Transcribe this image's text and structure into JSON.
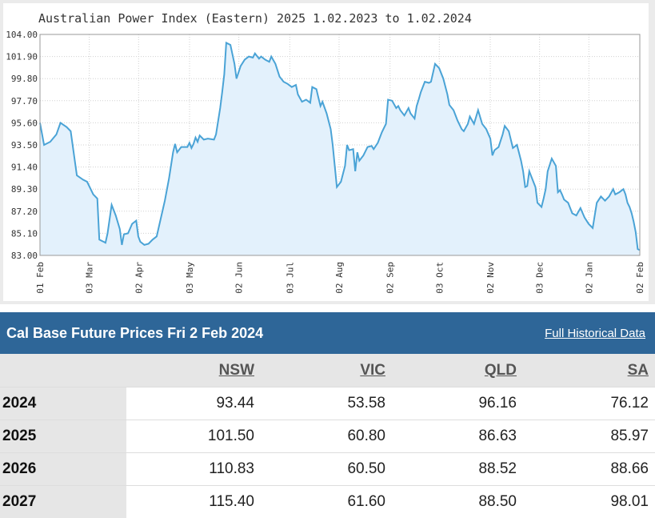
{
  "chart": {
    "title": "Australian Power Index (Eastern) 2025 1.02.2023 to 1.02.2024"
  },
  "chart_data": {
    "type": "area",
    "title": "Australian Power Index (Eastern) 2025 1.02.2023 to 1.02.2024",
    "ylim": [
      83.0,
      104.0
    ],
    "yticks": [
      "104.00",
      "101.90",
      "99.80",
      "97.70",
      "95.60",
      "93.50",
      "91.40",
      "89.30",
      "87.20",
      "85.10",
      "83.00"
    ],
    "xticks": [
      "01 Feb",
      "03 Mar",
      "02 Apr",
      "03 May",
      "02 Jun",
      "03 Jul",
      "02 Aug",
      "02 Sep",
      "03 Oct",
      "02 Nov",
      "03 Dec",
      "02 Jan",
      "02 Feb"
    ],
    "grid": true,
    "series": [
      {
        "color": "#4aa3d6",
        "points": [
          [
            0,
            95.6
          ],
          [
            2,
            93.5
          ],
          [
            5,
            93.8
          ],
          [
            8,
            94.5
          ],
          [
            10,
            95.6
          ],
          [
            13,
            95.2
          ],
          [
            15,
            94.8
          ],
          [
            18,
            90.6
          ],
          [
            21,
            90.2
          ],
          [
            23,
            90.0
          ],
          [
            26,
            88.8
          ],
          [
            28,
            88.4
          ],
          [
            29,
            84.5
          ],
          [
            31,
            84.3
          ],
          [
            32,
            84.2
          ],
          [
            33,
            85.1
          ],
          [
            35,
            87.8
          ],
          [
            37,
            86.8
          ],
          [
            39,
            85.5
          ],
          [
            40,
            84.0
          ],
          [
            41,
            85.0
          ],
          [
            43,
            85.1
          ],
          [
            45,
            86.0
          ],
          [
            47,
            86.3
          ],
          [
            48,
            84.8
          ],
          [
            49,
            84.3
          ],
          [
            51,
            84.0
          ],
          [
            53,
            84.1
          ],
          [
            55,
            84.5
          ],
          [
            57,
            84.8
          ],
          [
            59,
            86.5
          ],
          [
            61,
            88.2
          ],
          [
            63,
            90.3
          ],
          [
            65,
            92.8
          ],
          [
            66,
            93.6
          ],
          [
            67,
            92.8
          ],
          [
            69,
            93.3
          ],
          [
            72,
            93.3
          ],
          [
            73,
            93.7
          ],
          [
            74,
            93.2
          ],
          [
            75,
            93.6
          ],
          [
            76,
            94.2
          ],
          [
            77,
            93.8
          ],
          [
            78,
            94.4
          ],
          [
            80,
            94.0
          ],
          [
            82,
            94.1
          ],
          [
            85,
            94.0
          ],
          [
            86,
            94.5
          ],
          [
            88,
            97.0
          ],
          [
            89,
            98.5
          ],
          [
            90,
            100.2
          ],
          [
            91,
            103.2
          ],
          [
            93,
            103.0
          ],
          [
            95,
            101.2
          ],
          [
            96,
            99.8
          ],
          [
            98,
            101.0
          ],
          [
            100,
            101.6
          ],
          [
            102,
            101.9
          ],
          [
            104,
            101.8
          ],
          [
            105,
            102.2
          ],
          [
            107,
            101.7
          ],
          [
            108,
            101.9
          ],
          [
            110,
            101.6
          ],
          [
            112,
            101.4
          ],
          [
            113,
            101.9
          ],
          [
            115,
            101.2
          ],
          [
            117,
            100.0
          ],
          [
            119,
            99.5
          ],
          [
            121,
            99.3
          ],
          [
            123,
            99.0
          ],
          [
            125,
            99.2
          ],
          [
            126,
            98.3
          ],
          [
            128,
            97.6
          ],
          [
            130,
            97.8
          ],
          [
            132,
            97.5
          ],
          [
            133,
            99.0
          ],
          [
            135,
            98.8
          ],
          [
            136,
            98.0
          ],
          [
            137,
            97.2
          ],
          [
            138,
            97.6
          ],
          [
            140,
            96.5
          ],
          [
            142,
            95.0
          ],
          [
            143,
            93.5
          ],
          [
            145,
            89.5
          ],
          [
            147,
            90.0
          ],
          [
            149,
            91.5
          ],
          [
            150,
            93.5
          ],
          [
            151,
            93.0
          ],
          [
            153,
            93.1
          ],
          [
            154,
            91.0
          ],
          [
            155,
            92.8
          ],
          [
            156,
            92.0
          ],
          [
            158,
            92.5
          ],
          [
            160,
            93.3
          ],
          [
            162,
            93.4
          ],
          [
            163,
            93.1
          ],
          [
            165,
            93.7
          ],
          [
            167,
            94.7
          ],
          [
            169,
            95.5
          ],
          [
            170,
            97.8
          ],
          [
            172,
            97.7
          ],
          [
            174,
            97.0
          ],
          [
            175,
            97.2
          ],
          [
            176,
            96.8
          ],
          [
            178,
            96.3
          ],
          [
            180,
            97.0
          ],
          [
            181,
            96.5
          ],
          [
            183,
            96.0
          ],
          [
            184,
            97.2
          ],
          [
            185,
            97.8
          ],
          [
            186,
            98.5
          ],
          [
            188,
            99.5
          ],
          [
            190,
            99.4
          ],
          [
            191,
            99.5
          ],
          [
            193,
            101.2
          ],
          [
            195,
            100.8
          ],
          [
            197,
            99.8
          ],
          [
            199,
            98.3
          ],
          [
            200,
            97.3
          ],
          [
            202,
            96.8
          ],
          [
            204,
            95.8
          ],
          [
            206,
            95.0
          ],
          [
            207,
            94.8
          ],
          [
            209,
            95.5
          ],
          [
            210,
            96.2
          ],
          [
            212,
            95.5
          ],
          [
            214,
            96.8
          ],
          [
            216,
            95.5
          ],
          [
            218,
            95.0
          ],
          [
            220,
            94.1
          ],
          [
            221,
            92.5
          ],
          [
            222,
            93.0
          ],
          [
            224,
            93.3
          ],
          [
            226,
            94.5
          ],
          [
            227,
            95.3
          ],
          [
            229,
            94.8
          ],
          [
            231,
            93.2
          ],
          [
            233,
            93.5
          ],
          [
            235,
            92.0
          ],
          [
            236,
            91.0
          ],
          [
            237,
            89.5
          ],
          [
            238,
            89.6
          ],
          [
            239,
            91.0
          ],
          [
            240,
            90.5
          ],
          [
            242,
            89.5
          ],
          [
            243,
            88.0
          ],
          [
            245,
            87.6
          ],
          [
            246,
            88.4
          ],
          [
            247,
            89.3
          ],
          [
            248,
            91.0
          ],
          [
            250,
            92.2
          ],
          [
            252,
            91.5
          ],
          [
            253,
            89.0
          ],
          [
            254,
            89.2
          ],
          [
            255,
            88.8
          ],
          [
            256,
            88.3
          ],
          [
            258,
            88.0
          ],
          [
            260,
            87.0
          ],
          [
            262,
            86.8
          ],
          [
            264,
            87.5
          ],
          [
            266,
            86.6
          ],
          [
            268,
            86.0
          ],
          [
            270,
            85.6
          ],
          [
            272,
            88.0
          ],
          [
            274,
            88.6
          ],
          [
            276,
            88.2
          ],
          [
            278,
            88.6
          ],
          [
            280,
            89.3
          ],
          [
            281,
            88.8
          ],
          [
            283,
            89.0
          ],
          [
            285,
            89.3
          ],
          [
            286,
            88.8
          ],
          [
            287,
            88.0
          ],
          [
            288,
            87.6
          ],
          [
            289,
            87.0
          ],
          [
            290,
            86.2
          ],
          [
            291,
            85.2
          ],
          [
            292,
            83.6
          ],
          [
            293,
            83.5
          ]
        ]
      }
    ]
  },
  "prices": {
    "title": "Cal Base Future Prices Fri 2 Feb 2024",
    "history_link": "Full Historical Data",
    "columns": [
      "NSW",
      "VIC",
      "QLD",
      "SA"
    ],
    "rows": [
      {
        "year": "2024",
        "values": [
          "93.44",
          "53.58",
          "96.16",
          "76.12"
        ]
      },
      {
        "year": "2025",
        "values": [
          "101.50",
          "60.80",
          "86.63",
          "85.97"
        ]
      },
      {
        "year": "2026",
        "values": [
          "110.83",
          "60.50",
          "88.52",
          "88.66"
        ]
      },
      {
        "year": "2027",
        "values": [
          "115.40",
          "61.60",
          "88.50",
          "98.01"
        ]
      }
    ]
  }
}
